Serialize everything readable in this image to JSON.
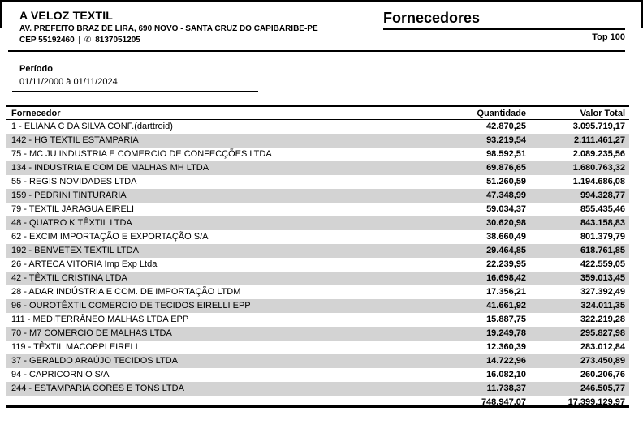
{
  "company": {
    "name": "A VELOZ TEXTIL",
    "address": "AV. PREFEITO BRAZ DE LIRA, 690 NOVO - SANTA CRUZ DO CAPIBARIBE-PE",
    "cep": "CEP 55192460",
    "separator": "|",
    "phone_icon": "✆",
    "phone": "8137051205"
  },
  "report": {
    "title": "Fornecedores",
    "badge": "Top 100"
  },
  "period": {
    "label": "Período",
    "value": "01/11/2000 à 01/11/2024"
  },
  "table": {
    "columns": [
      "Fornecedor",
      "Quantidade",
      "Valor Total"
    ],
    "rows": [
      {
        "name": "1 - ELIANA C DA SILVA CONF.(darttroid)",
        "quantity": "42.870,25",
        "total": "3.095.719,17"
      },
      {
        "name": "142 - HG TEXTIL ESTAMPARIA",
        "quantity": "93.219,54",
        "total": "2.111.461,27"
      },
      {
        "name": "75 - MC JU INDUSTRIA E COMERCIO DE CONFECÇÕES LTDA",
        "quantity": "98.592,51",
        "total": "2.089.235,56"
      },
      {
        "name": "134 - INDUSTRIA E COM DE MALHAS MH LTDA",
        "quantity": "69.876,65",
        "total": "1.680.763,32"
      },
      {
        "name": "55 - REGIS NOVIDADES LTDA",
        "quantity": "51.260,59",
        "total": "1.194.686,08"
      },
      {
        "name": "159 - PEDRINI TINTURARIA",
        "quantity": "47.348,99",
        "total": "994.328,77"
      },
      {
        "name": "79 - TEXTIL JARAGUA EIRELI",
        "quantity": "59.034,37",
        "total": "855.435,46"
      },
      {
        "name": "48 - QUATRO K TÊXTIL LTDA",
        "quantity": "30.620,98",
        "total": "843.158,83"
      },
      {
        "name": "62 - EXCIM IMPORTAÇÃO E EXPORTAÇÃO S/A",
        "quantity": "38.660,49",
        "total": "801.379,79"
      },
      {
        "name": "192 - BENVETEX TEXTIL LTDA",
        "quantity": "29.464,85",
        "total": "618.761,85"
      },
      {
        "name": "26 - ARTECA VITORIA Imp Exp Ltda",
        "quantity": "22.239,95",
        "total": "422.559,05"
      },
      {
        "name": "42 - TÊXTIL CRISTINA LTDA",
        "quantity": "16.698,42",
        "total": "359.013,45"
      },
      {
        "name": "28 - ADAR INDÚSTRIA E COM. DE IMPORTAÇÃO LTDM",
        "quantity": "17.356,21",
        "total": "327.392,49"
      },
      {
        "name": "96 - OUROTÊXTIL COMERCIO DE TECIDOS EIRELLI EPP",
        "quantity": "41.661,92",
        "total": "324.011,35"
      },
      {
        "name": "111 - MEDITERRÂNEO MALHAS LTDA EPP",
        "quantity": "15.887,75",
        "total": "322.219,28"
      },
      {
        "name": "70 - M7 COMERCIO DE MALHAS LTDA",
        "quantity": "19.249,78",
        "total": "295.827,98"
      },
      {
        "name": "119 - TÊXTIL MACOPPI EIRELI",
        "quantity": "12.360,39",
        "total": "283.012,84"
      },
      {
        "name": "37 - GERALDO ARAÚJO TECIDOS LTDA",
        "quantity": "14.722,96",
        "total": "273.450,89"
      },
      {
        "name": "94 - CAPRICORNIO S/A",
        "quantity": "16.082,10",
        "total": "260.206,76"
      },
      {
        "name": "244 - ESTAMPARIA CORES E TONS LTDA",
        "quantity": "11.738,37",
        "total": "246.505,77"
      }
    ],
    "totals": {
      "quantity": "748.947,07",
      "total": "17.399.129,97"
    }
  },
  "colors": {
    "stripe": "#d3d3d3",
    "ink": "#000000"
  }
}
